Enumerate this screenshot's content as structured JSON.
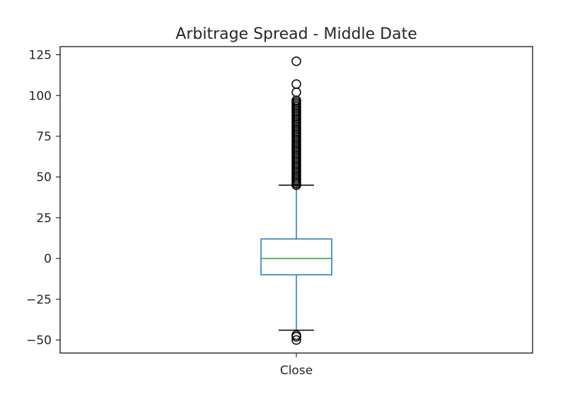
{
  "chart_data": {
    "type": "box",
    "title": "Arbitrage Spread - Middle Date",
    "categories": [
      "Close"
    ],
    "ylim": [
      -58,
      130
    ],
    "yticks": [
      -50,
      -25,
      0,
      25,
      50,
      75,
      100,
      125
    ],
    "ytick_labels": [
      "−50",
      "−25",
      "0",
      "25",
      "50",
      "75",
      "100",
      "125"
    ],
    "box": {
      "label": "Close",
      "whisker_low": -44,
      "q1": -10,
      "median": 0,
      "q3": 12,
      "whisker_high": 45,
      "outliers": [
        -47,
        -48,
        -50,
        45,
        46,
        47,
        48,
        49,
        50,
        51,
        52,
        53,
        54,
        55,
        56,
        57,
        58,
        59,
        60,
        61,
        62,
        63,
        64,
        65,
        66,
        67,
        68,
        69,
        70,
        71,
        72,
        73,
        74,
        75,
        76,
        77,
        78,
        79,
        80,
        81,
        82,
        83,
        84,
        85,
        86,
        87,
        88,
        89,
        90,
        91,
        92,
        93,
        94,
        95,
        96,
        97,
        102,
        107,
        121
      ]
    },
    "grid": false,
    "colors": {
      "box": "#1f77b4",
      "median": "#2ca02c",
      "whisker": "#1f77b4",
      "cap": "#000000",
      "flier": "#000000"
    }
  }
}
